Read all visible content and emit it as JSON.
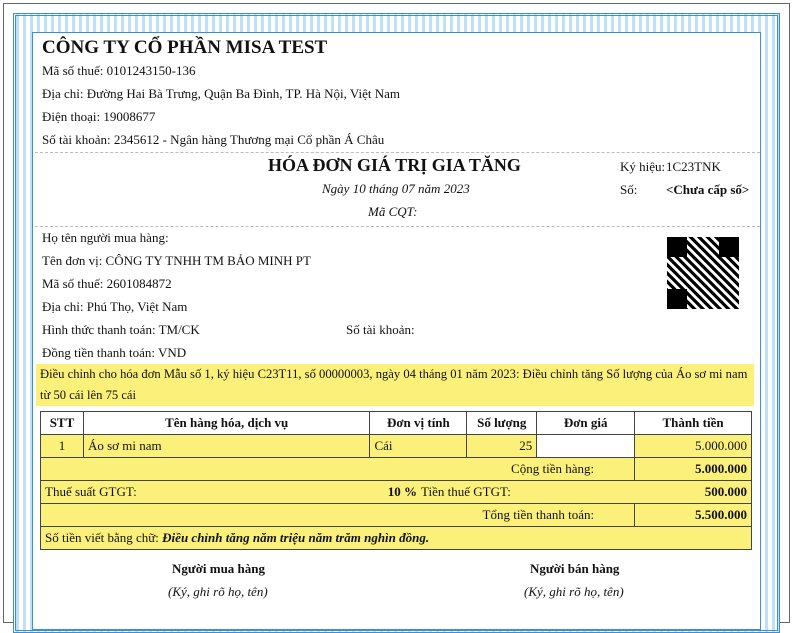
{
  "seller": {
    "name": "CÔNG TY CỔ PHẦN MISA TEST",
    "tax_code": "Mã số thuế: 0101243150-136",
    "address": "Địa chỉ: Đường Hai Bà Trưng, Quận Ba Đình, TP. Hà Nội, Việt Nam",
    "phone": "Điện thoại: 19008677",
    "account": "Số tài khoản: 2345612 - Ngân hàng Thương mại Cổ phần Á Châu"
  },
  "invoice": {
    "title": "HÓA ĐƠN GIÁ TRỊ GIA TĂNG",
    "date": "Ngày 10 tháng 07 năm 2023",
    "cqt_code": "Mã CQT:",
    "symbol_label": "Ký hiệu:",
    "symbol": "1C23TNK",
    "number_label": "Số:",
    "number": "<Chưa cấp số>"
  },
  "buyer": {
    "name": "Họ tên người mua hàng:",
    "unit": "Tên đơn vị: CÔNG TY TNHH TM BẢO MINH PT",
    "tax_code": "Mã số thuế: 2601084872",
    "address": "Địa chỉ: Phú Thọ, Việt Nam",
    "payment": "Hình thức thanh toán: TM/CK",
    "account": "Số tài khoản:",
    "currency": "Đồng tiền thanh toán: VND"
  },
  "adjust_note": "Điều chỉnh cho hóa đơn Mẫu số 1, ký hiệu C23T11, số 00000003, ngày 04 tháng 01 năm 2023: Điều chỉnh tăng Số lượng của Áo sơ mi nam từ 50 cái lên 75 cái",
  "table": {
    "headers": [
      "STT",
      "Tên hàng hóa, dịch vụ",
      "Đơn vị tính",
      "Số lượng",
      "Đơn giá",
      "Thành tiền"
    ],
    "rows": [
      {
        "stt": "1",
        "name": "Áo sơ mi nam",
        "unit": "Cái",
        "qty": "25",
        "price": "",
        "total": "5.000.000"
      }
    ]
  },
  "totals": {
    "subtotal_label": "Cộng tiền hàng:",
    "subtotal": "5.000.000",
    "vat_rate_label": "Thuế suất GTGT:",
    "vat_rate": "10 %",
    "vat_label": "Tiền thuế GTGT:",
    "vat": "500.000",
    "grand_label": "Tổng tiền thanh toán:",
    "grand": "5.500.000",
    "words_label": "Số tiền viết bằng chữ:",
    "words": "Điều chỉnh tăng năm triệu năm trăm nghìn đồng."
  },
  "signatures": {
    "buyer": "Người mua hàng",
    "buyer_note": "(Ký, ghi rõ họ, tên)",
    "seller": "Người bán hàng",
    "seller_note": "(Ký, ghi rõ họ, tên)"
  },
  "colors": {
    "highlight": "#fbf07a",
    "border": "#3a8fd6"
  }
}
